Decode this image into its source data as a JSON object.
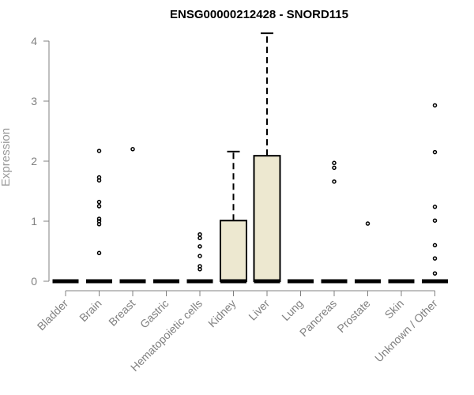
{
  "chart_data": {
    "type": "box",
    "title": "ENSG00000212428 - SNORD115",
    "xlabel": "",
    "ylabel": "Expression",
    "ylim": [
      0,
      4
    ],
    "yticks": [
      0,
      1,
      2,
      3,
      4
    ],
    "grid": false,
    "legend": "none",
    "categories": [
      "Bladder",
      "Brain",
      "Breast",
      "Gastric",
      "Hematopoietic cells",
      "Kidney",
      "Liver",
      "Lung",
      "Pancreas",
      "Prostate",
      "Skin",
      "Unknown / Other"
    ],
    "boxes": [
      {
        "q1": 0,
        "median": 0,
        "q3": 0,
        "whisker_low": 0,
        "whisker_high": 0,
        "outliers": []
      },
      {
        "q1": 0,
        "median": 0,
        "q3": 0,
        "whisker_low": 0,
        "whisker_high": 0,
        "outliers": [
          0.47,
          0.95,
          1.0,
          1.04,
          1.25,
          1.32,
          1.68,
          1.73,
          2.17
        ]
      },
      {
        "q1": 0,
        "median": 0,
        "q3": 0,
        "whisker_low": 0,
        "whisker_high": 0,
        "outliers": [
          2.2
        ]
      },
      {
        "q1": 0,
        "median": 0,
        "q3": 0,
        "whisker_low": 0,
        "whisker_high": 0,
        "outliers": []
      },
      {
        "q1": 0,
        "median": 0,
        "q3": 0,
        "whisker_low": 0,
        "whisker_high": 0,
        "outliers": [
          0.2,
          0.25,
          0.42,
          0.58,
          0.72,
          0.78
        ]
      },
      {
        "q1": 0,
        "median": 0,
        "q3": 1.01,
        "whisker_low": 0,
        "whisker_high": 2.16,
        "outliers": []
      },
      {
        "q1": 0,
        "median": 0,
        "q3": 2.09,
        "whisker_low": 0,
        "whisker_high": 4.13,
        "outliers": []
      },
      {
        "q1": 0,
        "median": 0,
        "q3": 0,
        "whisker_low": 0,
        "whisker_high": 0,
        "outliers": []
      },
      {
        "q1": 0,
        "median": 0,
        "q3": 0,
        "whisker_low": 0,
        "whisker_high": 0,
        "outliers": [
          1.66,
          1.89,
          1.97
        ]
      },
      {
        "q1": 0,
        "median": 0,
        "q3": 0,
        "whisker_low": 0,
        "whisker_high": 0,
        "outliers": [
          0.96
        ]
      },
      {
        "q1": 0,
        "median": 0,
        "q3": 0,
        "whisker_low": 0,
        "whisker_high": 0,
        "outliers": []
      },
      {
        "q1": 0,
        "median": 0,
        "q3": 0,
        "whisker_low": 0,
        "whisker_high": 0,
        "outliers": [
          0.13,
          0.38,
          0.6,
          1.01,
          1.24,
          2.15,
          2.93
        ]
      }
    ],
    "box_fill": "#ede8d0",
    "box_stroke": "#000000",
    "axis_color": "#808080"
  }
}
